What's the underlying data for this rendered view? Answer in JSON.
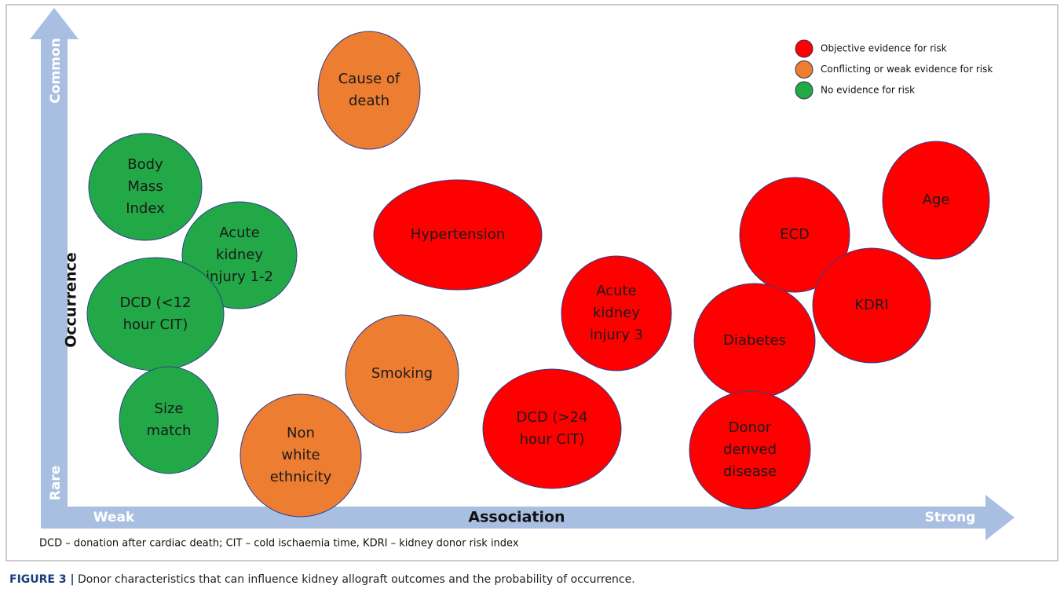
{
  "axes": {
    "y": {
      "label": "Occurrence",
      "high": "Common",
      "low": "Rare"
    },
    "x": {
      "label": "Association",
      "low": "Weak",
      "high": "Strong"
    }
  },
  "legend": [
    {
      "label": "Objective evidence for risk",
      "color": "#ff0000"
    },
    {
      "label": "Conflicting or weak evidence for risk",
      "color": "#ed7d31"
    },
    {
      "label": "No evidence for risk",
      "color": "#22a846"
    }
  ],
  "nodes": [
    {
      "lines": [
        "Cause of",
        "death"
      ],
      "color": "#ed7d31"
    },
    {
      "lines": [
        "Body",
        "Mass",
        "Index"
      ],
      "color": "#22a846"
    },
    {
      "lines": [
        "Acute",
        "kidney",
        "injury 1-2"
      ],
      "color": "#22a846"
    },
    {
      "lines": [
        "DCD (<12",
        "hour CIT)"
      ],
      "color": "#22a846"
    },
    {
      "lines": [
        "Size",
        "match"
      ],
      "color": "#22a846"
    },
    {
      "lines": [
        "Non",
        "white",
        "ethnicity"
      ],
      "color": "#ed7d31"
    },
    {
      "lines": [
        "Smoking"
      ],
      "color": "#ed7d31"
    },
    {
      "lines": [
        "Hypertension"
      ],
      "color": "#ff0000"
    },
    {
      "lines": [
        "Acute",
        "kidney",
        "injury 3"
      ],
      "color": "#ff0000"
    },
    {
      "lines": [
        "DCD (>24",
        "hour CIT)"
      ],
      "color": "#ff0000"
    },
    {
      "lines": [
        "ECD"
      ],
      "color": "#ff0000"
    },
    {
      "lines": [
        "Age"
      ],
      "color": "#ff0000"
    },
    {
      "lines": [
        "KDRI"
      ],
      "color": "#ff0000"
    },
    {
      "lines": [
        "Diabetes"
      ],
      "color": "#ff0000"
    },
    {
      "lines": [
        "Donor",
        "derived",
        "disease"
      ],
      "color": "#ff0000"
    }
  ],
  "footnote": "DCD – donation after cardiac death; CIT – cold ischaemia time, KDRI – kidney donor risk index",
  "caption": {
    "label": "FIGURE 3 |",
    "text": " Donor characteristics that can influence kidney allograft outcomes and the probability of occurrence."
  }
}
